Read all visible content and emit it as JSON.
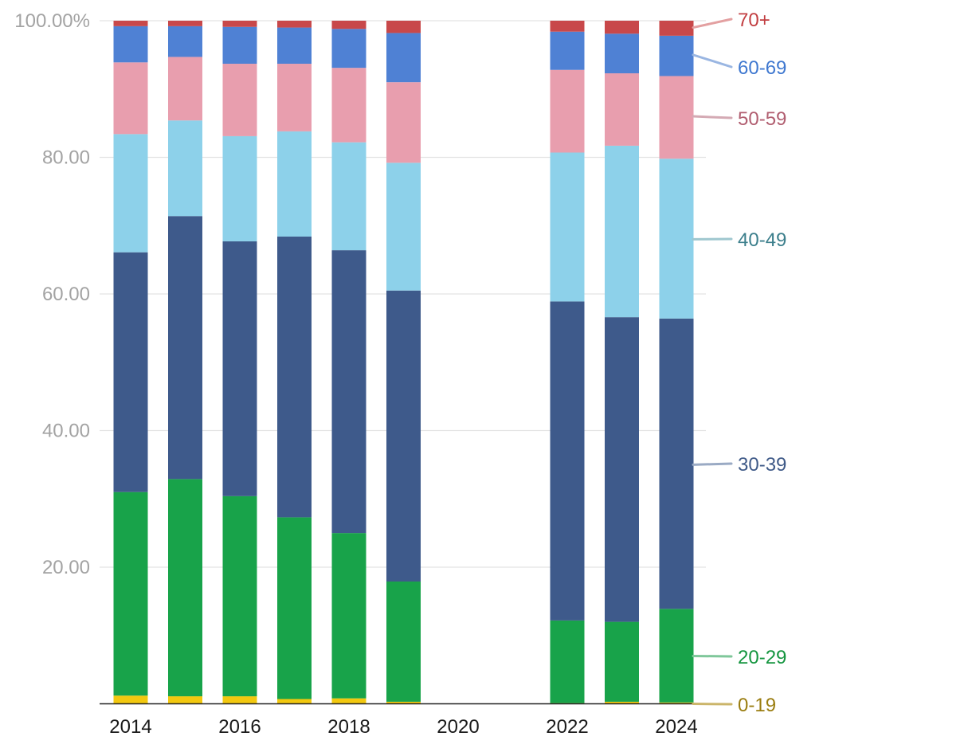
{
  "chart_data": {
    "type": "bar",
    "stacked": true,
    "categories": [
      "2014",
      "2015",
      "2016",
      "2017",
      "2018",
      "2019",
      "2020",
      "2021",
      "2022",
      "2023",
      "2024"
    ],
    "x_tick_labels": [
      "2014",
      "2016",
      "2018",
      "2020",
      "2022",
      "2024"
    ],
    "y_tick_labels": [
      "20.00",
      "40.00",
      "60.00",
      "80.00",
      "100.00%"
    ],
    "y_ticks": [
      20,
      40,
      60,
      80,
      100
    ],
    "ylim": [
      0,
      100
    ],
    "grid": true,
    "legend_position": "right (inline end labels)",
    "series": [
      {
        "name": "0-19",
        "color": "#f2c80f",
        "label_color": "#9a7d10",
        "leader_color": "#cbb56a",
        "values": [
          1.2,
          1.1,
          1.1,
          0.7,
          0.8,
          0.3,
          null,
          null,
          0.1,
          0.3,
          0.2
        ]
      },
      {
        "name": "20-29",
        "color": "#18a34a",
        "label_color": "#14953f",
        "leader_color": "#7fc79a",
        "values": [
          29.8,
          31.8,
          29.3,
          26.6,
          24.2,
          17.6,
          null,
          null,
          12.1,
          11.7,
          13.7
        ]
      },
      {
        "name": "30-39",
        "color": "#3e5a8b",
        "label_color": "#3f5a88",
        "leader_color": "#9aaac4",
        "values": [
          35.1,
          38.5,
          37.3,
          41.1,
          41.4,
          42.6,
          null,
          null,
          46.7,
          44.6,
          42.5
        ]
      },
      {
        "name": "40-49",
        "color": "#8dd1ea",
        "label_color": "#3c7f8c",
        "leader_color": "#9fc7cf",
        "values": [
          17.3,
          14.0,
          15.4,
          15.4,
          15.8,
          18.7,
          null,
          null,
          21.8,
          25.1,
          23.4
        ]
      },
      {
        "name": "50-59",
        "color": "#e89eae",
        "label_color": "#b15e70",
        "leader_color": "#d4aab4",
        "values": [
          10.5,
          9.3,
          10.6,
          9.9,
          10.9,
          11.8,
          null,
          null,
          12.1,
          10.6,
          12.1
        ]
      },
      {
        "name": "60-69",
        "color": "#4f81d4",
        "label_color": "#3f78d0",
        "leader_color": "#9ab6e2",
        "values": [
          5.3,
          4.5,
          5.4,
          5.3,
          5.7,
          7.2,
          null,
          null,
          5.6,
          5.8,
          5.9
        ]
      },
      {
        "name": "70+",
        "color": "#c8484a",
        "label_color": "#c23f42",
        "leader_color": "#e3a0a1",
        "values": [
          0.8,
          0.8,
          0.9,
          1.0,
          1.2,
          1.8,
          null,
          null,
          1.6,
          1.9,
          2.2
        ]
      }
    ],
    "series_label_anchor_values": [
      0,
      7,
      35,
      68,
      86,
      95,
      99
    ]
  }
}
